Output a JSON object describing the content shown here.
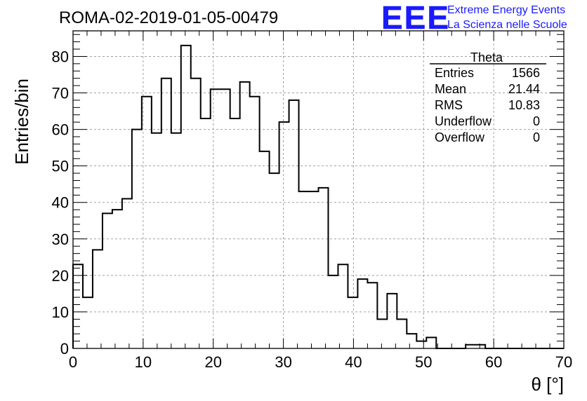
{
  "chart_data": {
    "type": "bar",
    "title": "ROMA-02-2019-01-05-00479",
    "xlabel": "θ [°]",
    "ylabel": "Entries/bin",
    "xlim": [
      0,
      70
    ],
    "ylim": [
      0,
      87
    ],
    "x_ticks": [
      "0",
      "10",
      "20",
      "30",
      "40",
      "50",
      "60",
      "70"
    ],
    "y_ticks": [
      "0",
      "10",
      "20",
      "30",
      "40",
      "50",
      "60",
      "70",
      "80"
    ],
    "grid": true,
    "bin_width": 1.4,
    "bin_edges_start": 0,
    "values": [
      23,
      14,
      27,
      37,
      38,
      41,
      60,
      69,
      59,
      74,
      59,
      83,
      74,
      63,
      71,
      71,
      63,
      73,
      69,
      54,
      48,
      62,
      68,
      43,
      43,
      44,
      20,
      23,
      14,
      19,
      18,
      8,
      15,
      8,
      4,
      2,
      3,
      0,
      0,
      0,
      1,
      1,
      0,
      0,
      0,
      0,
      0,
      0,
      0,
      0
    ],
    "stats": {
      "title": "Theta",
      "rows": [
        {
          "label": "Entries",
          "value": "1566"
        },
        {
          "label": "Mean",
          "value": "21.44"
        },
        {
          "label": "RMS",
          "value": "10.83"
        },
        {
          "label": "Underflow",
          "value": "0"
        },
        {
          "label": "Overflow",
          "value": "0"
        }
      ]
    }
  },
  "branding": {
    "logo": "EEE",
    "line1": "Extreme Energy Events",
    "line2": "La Scienza nelle Scuole",
    "color": "#1a1aff"
  }
}
